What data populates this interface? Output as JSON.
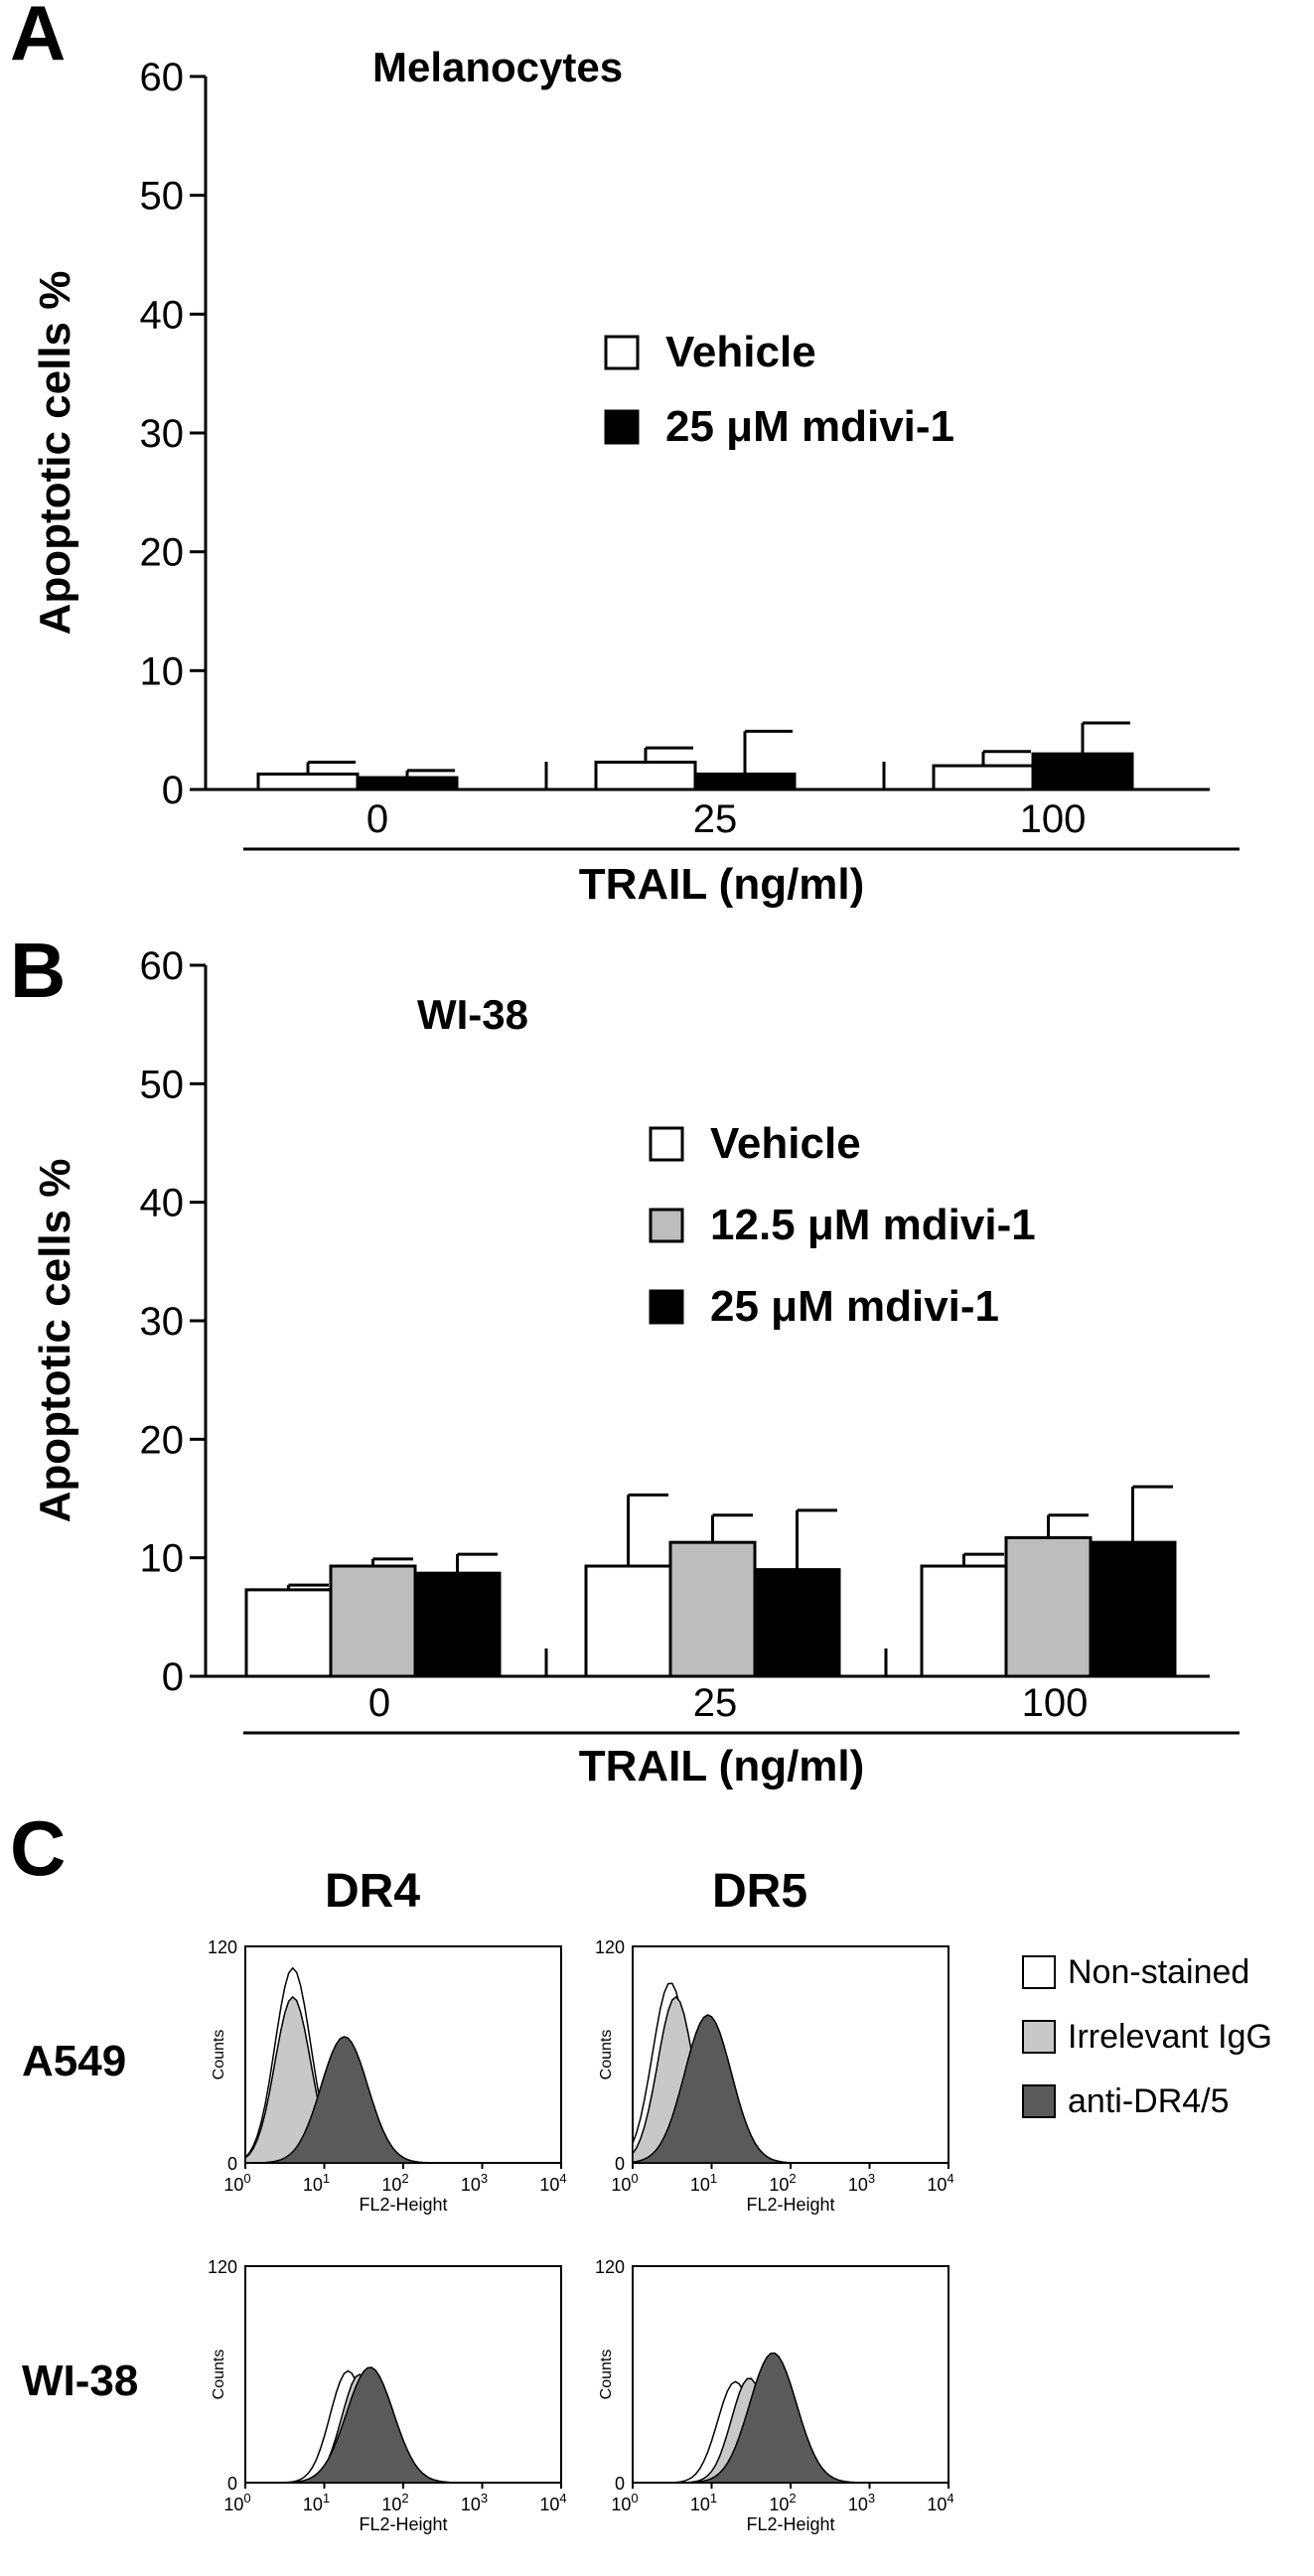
{
  "panel_letters": [
    "A",
    "B",
    "C"
  ],
  "colors": {
    "vehicle": "#ffffff",
    "mid_dose": "#bdbdbd",
    "high_dose": "#000000",
    "non_stained": "#ffffff",
    "irrelevant_igg": "#c8c8c8",
    "anti_dr": "#5a5a5a"
  },
  "chart_data": [
    {
      "type": "bar",
      "panel": "A",
      "title": "Melanocytes",
      "ylabel": "Apoptotic cells %",
      "xlabel": "TRAIL (ng/ml)",
      "ylim": [
        0,
        60
      ],
      "yticks": [
        "0",
        "10",
        "20",
        "30",
        "40",
        "50",
        "60"
      ],
      "categories": [
        "0",
        "25",
        "100"
      ],
      "legend_position": "center-right",
      "series": [
        {
          "name": "Vehicle",
          "color": "#ffffff",
          "values": [
            1.3,
            2.3,
            2.0
          ],
          "errors": [
            1.0,
            1.2,
            1.2
          ]
        },
        {
          "name": "25 μM mdivi-1",
          "color": "#000000",
          "values": [
            1.0,
            1.3,
            3.0
          ],
          "errors": [
            0.6,
            3.6,
            2.6
          ]
        }
      ]
    },
    {
      "type": "bar",
      "panel": "B",
      "title": "WI-38",
      "ylabel": "Apoptotic cells %",
      "xlabel": "TRAIL (ng/ml)",
      "ylim": [
        0,
        60
      ],
      "yticks": [
        "0",
        "10",
        "20",
        "30",
        "40",
        "50",
        "60"
      ],
      "categories": [
        "0",
        "25",
        "100"
      ],
      "legend_position": "center-right",
      "series": [
        {
          "name": "Vehicle",
          "color": "#ffffff",
          "values": [
            7.3,
            9.3,
            9.3
          ],
          "errors": [
            0.4,
            6.0,
            1.0
          ]
        },
        {
          "name": "12.5 μM mdivi-1",
          "color": "#bdbdbd",
          "values": [
            9.3,
            11.3,
            11.7
          ],
          "errors": [
            0.6,
            2.3,
            1.9
          ]
        },
        {
          "name": "25 μM mdivi-1",
          "color": "#000000",
          "values": [
            8.7,
            9.0,
            11.3
          ],
          "errors": [
            1.6,
            5.0,
            4.7
          ]
        }
      ]
    },
    {
      "type": "area",
      "panel": "C",
      "subtype": "flow cytometry histograms",
      "columns": [
        "DR4",
        "DR5"
      ],
      "rows": [
        "A549",
        "WI-38"
      ],
      "xlabel": "FL2-Height",
      "ylabel": "Counts",
      "ylim": [
        0,
        120
      ],
      "yticks": [
        "0",
        "120"
      ],
      "x_scale": "log",
      "xlim": [
        1,
        10000
      ],
      "xtick_bases": [
        "10",
        "10",
        "10",
        "10",
        "10"
      ],
      "xtick_exponents": [
        "0",
        "1",
        "2",
        "3",
        "4"
      ],
      "legend": [
        "Non-stained",
        "Irrelevant IgG",
        "anti-DR4/5"
      ],
      "histograms": [
        {
          "row": "A549",
          "column": "DR4",
          "curves": [
            {
              "name": "Non-stained",
              "peak_x": 4,
              "peak_y": 108
            },
            {
              "name": "Irrelevant IgG",
              "peak_x": 4,
              "peak_y": 92
            },
            {
              "name": "anti-DR4/5",
              "peak_x": 18,
              "peak_y": 70
            }
          ]
        },
        {
          "row": "A549",
          "column": "DR5",
          "curves": [
            {
              "name": "Non-stained",
              "peak_x": 3,
              "peak_y": 100
            },
            {
              "name": "Irrelevant IgG",
              "peak_x": 3.5,
              "peak_y": 92
            },
            {
              "name": "anti-DR4/5",
              "peak_x": 9,
              "peak_y": 82
            }
          ]
        },
        {
          "row": "WI-38",
          "column": "DR4",
          "curves": [
            {
              "name": "Non-stained",
              "peak_x": 20,
              "peak_y": 62
            },
            {
              "name": "Irrelevant IgG",
              "peak_x": 28,
              "peak_y": 60
            },
            {
              "name": "anti-DR4/5",
              "peak_x": 38,
              "peak_y": 64
            }
          ]
        },
        {
          "row": "WI-38",
          "column": "DR5",
          "curves": [
            {
              "name": "Non-stained",
              "peak_x": 20,
              "peak_y": 56
            },
            {
              "name": "Irrelevant IgG",
              "peak_x": 30,
              "peak_y": 58
            },
            {
              "name": "anti-DR4/5",
              "peak_x": 60,
              "peak_y": 72
            }
          ]
        }
      ]
    }
  ]
}
